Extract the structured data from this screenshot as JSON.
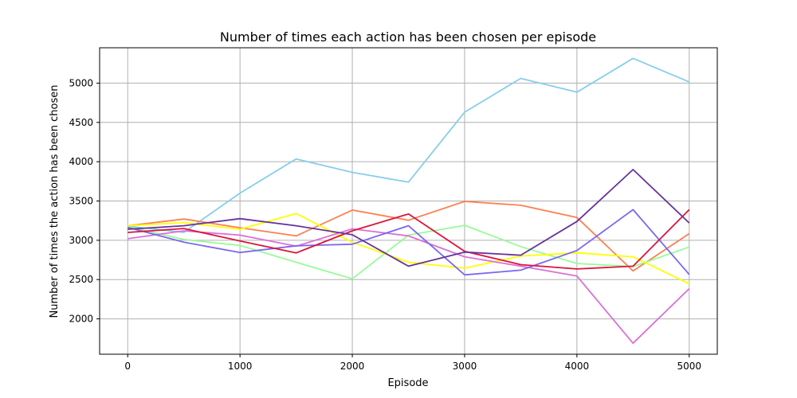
{
  "chart_data": {
    "type": "line",
    "title": "Number of times each action has been chosen per episode",
    "xlabel": "Episode",
    "ylabel": "Number of times the action has been chosen",
    "x": [
      0,
      500,
      1000,
      1500,
      2000,
      2500,
      3000,
      3500,
      4000,
      4500,
      5000
    ],
    "xlim": [
      -250,
      5250
    ],
    "ylim": [
      1550,
      5450
    ],
    "xticks": [
      0,
      1000,
      2000,
      3000,
      4000,
      5000
    ],
    "yticks": [
      2000,
      2500,
      3000,
      3500,
      4000,
      4500,
      5000
    ],
    "grid": true,
    "series": [
      {
        "color": "#87CEEB",
        "values": [
          3180,
          3100,
          3600,
          4035,
          3865,
          3740,
          4630,
          5060,
          4885,
          5315,
          5015
        ]
      },
      {
        "color": "#FF7F50",
        "values": [
          3185,
          3270,
          3160,
          3055,
          3385,
          3255,
          3495,
          3445,
          3290,
          2610,
          3085
        ]
      },
      {
        "color": "#98FB98",
        "values": [
          3175,
          3010,
          2935,
          2720,
          2510,
          3065,
          3190,
          2920,
          2705,
          2665,
          2915
        ]
      },
      {
        "color": "#FFFF00",
        "values": [
          3185,
          3225,
          3140,
          3340,
          2975,
          2720,
          2645,
          2800,
          2840,
          2790,
          2445
        ]
      },
      {
        "color": "#DA70D6",
        "values": [
          3020,
          3120,
          3065,
          2925,
          3145,
          3055,
          2790,
          2670,
          2545,
          1690,
          2385
        ]
      },
      {
        "color": "#7B68EE",
        "values": [
          3165,
          2975,
          2845,
          2930,
          2950,
          3185,
          2560,
          2620,
          2870,
          3390,
          2565
        ]
      },
      {
        "color": "#DC143C",
        "values": [
          3100,
          3150,
          2990,
          2840,
          3120,
          3335,
          2860,
          2690,
          2635,
          2670,
          3390
        ]
      },
      {
        "color": "#663399",
        "values": [
          3140,
          3185,
          3275,
          3185,
          3070,
          2670,
          2850,
          2810,
          3240,
          3900,
          3220
        ]
      }
    ]
  }
}
